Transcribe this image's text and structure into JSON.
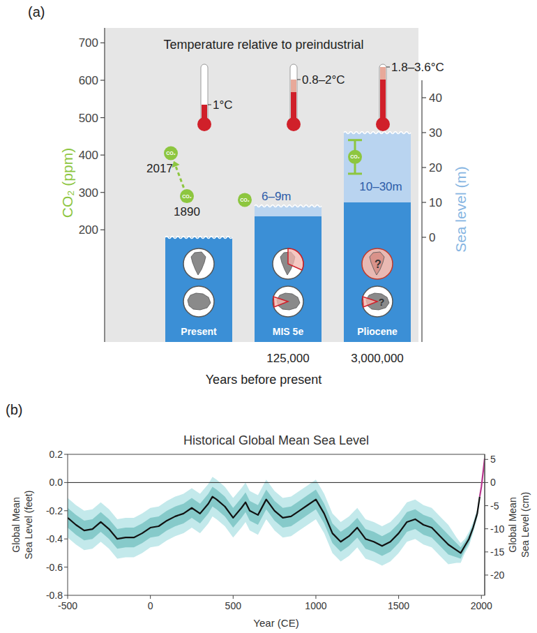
{
  "chart_data": [
    {
      "type": "bar",
      "panel_label": "(a)",
      "title": "Temperature relative to preindustrial",
      "x_label": "Years before present",
      "y_label": "CO₂ (ppm)",
      "y2_label": "Sea level (m)",
      "categories": [
        "Present",
        "MIS 5e",
        "Pliocene"
      ],
      "age_labels": [
        null,
        "125,000",
        "3,000,000"
      ],
      "temperature_labels": [
        "1°C",
        "0.8–2°C",
        "1.8–3.6°C"
      ],
      "sea_level_low": [
        0,
        6,
        10
      ],
      "sea_level_high": [
        0,
        9,
        30
      ],
      "sea_level_labels": [
        null,
        "6–9m",
        "10–30m"
      ],
      "icon_labels": [
        null,
        null,
        "?"
      ],
      "co2_icon_text": "CO₂",
      "co2_points": [
        {
          "category": "Present",
          "label": "1890",
          "value": 290
        },
        {
          "category": "Present",
          "label": "2017",
          "value": 405
        },
        {
          "category": "MIS 5e",
          "value": 280
        },
        {
          "category": "Pliocene",
          "value": 395,
          "error_low": 350,
          "error_high": 440
        }
      ],
      "color": "#8dc63f",
      "ylim": [
        -100,
        740
      ],
      "yticks": [
        200,
        300,
        400,
        500,
        600,
        700
      ],
      "y2lim": [
        -30,
        45
      ],
      "y2ticks": [
        0,
        10,
        20,
        30,
        40
      ]
    },
    {
      "type": "line",
      "panel_label": "(b)",
      "title": "Historical Global Mean Sea Level",
      "x_label": "Year (CE)",
      "y_label": [
        "Global Mean",
        "Sea Level (feet)"
      ],
      "y2_label": [
        "Global Mean",
        "Sea Level (cm)"
      ],
      "xlim": [
        -500,
        2020
      ],
      "xticks": [
        -500,
        0,
        500,
        1000,
        1500,
        2000
      ],
      "ylim": [
        -0.8,
        0.2
      ],
      "yticks": [
        -0.8,
        -0.6,
        -0.4,
        -0.2,
        {
          "value": 0,
          "label": "0.0"
        },
        0.2
      ],
      "y2lim": [
        -24.38,
        6.1
      ],
      "y2ticks": [
        -20,
        -15,
        -10,
        -5,
        0,
        5
      ],
      "series": [
        {
          "color": "#111111",
          "x": [
            -500,
            -450,
            -400,
            -350,
            -300,
            -250,
            -200,
            -150,
            -100,
            -50,
            0,
            50,
            100,
            150,
            200,
            250,
            300,
            350,
            375,
            400,
            450,
            500,
            550,
            575,
            600,
            650,
            700,
            750,
            800,
            850,
            900,
            950,
            1000,
            1050,
            1100,
            1150,
            1200,
            1250,
            1300,
            1350,
            1400,
            1450,
            1500,
            1550,
            1600,
            1650,
            1700,
            1750,
            1800,
            1850,
            1875,
            1900,
            1925,
            1950,
            1975,
            1990
          ],
          "values": [
            -0.25,
            -0.3,
            -0.34,
            -0.33,
            -0.28,
            -0.33,
            -0.4,
            -0.39,
            -0.39,
            -0.36,
            -0.32,
            -0.31,
            -0.27,
            -0.24,
            -0.22,
            -0.18,
            -0.22,
            -0.15,
            -0.1,
            -0.12,
            -0.17,
            -0.25,
            -0.18,
            -0.14,
            -0.2,
            -0.23,
            -0.12,
            -0.2,
            -0.25,
            -0.24,
            -0.2,
            -0.16,
            -0.12,
            -0.22,
            -0.36,
            -0.42,
            -0.38,
            -0.32,
            -0.4,
            -0.42,
            -0.45,
            -0.42,
            -0.36,
            -0.28,
            -0.26,
            -0.3,
            -0.32,
            -0.38,
            -0.44,
            -0.48,
            -0.5,
            -0.45,
            -0.4,
            -0.32,
            -0.22,
            -0.1
          ],
          "errors_inner": [
            0.07,
            0.07,
            0.07,
            0.07,
            0.07,
            0.07,
            0.07,
            0.07,
            0.07,
            0.07,
            0.07,
            0.07,
            0.07,
            0.07,
            0.07,
            0.07,
            0.07,
            0.07,
            0.07,
            0.07,
            0.07,
            0.07,
            0.07,
            0.07,
            0.07,
            0.07,
            0.07,
            0.07,
            0.07,
            0.07,
            0.07,
            0.07,
            0.07,
            0.07,
            0.07,
            0.07,
            0.07,
            0.07,
            0.07,
            0.07,
            0.07,
            0.07,
            0.07,
            0.07,
            0.07,
            0.07,
            0.07,
            0.07,
            0.07,
            0.05,
            0.04,
            0.03,
            0.03,
            0.02,
            0.02,
            0.02
          ],
          "errors_outer": [
            0.14,
            0.14,
            0.14,
            0.14,
            0.14,
            0.14,
            0.14,
            0.14,
            0.14,
            0.14,
            0.14,
            0.14,
            0.14,
            0.14,
            0.14,
            0.14,
            0.14,
            0.14,
            0.14,
            0.14,
            0.14,
            0.14,
            0.14,
            0.14,
            0.14,
            0.14,
            0.14,
            0.14,
            0.14,
            0.14,
            0.14,
            0.14,
            0.14,
            0.14,
            0.14,
            0.14,
            0.14,
            0.14,
            0.14,
            0.14,
            0.14,
            0.14,
            0.14,
            0.14,
            0.14,
            0.14,
            0.14,
            0.14,
            0.14,
            0.09,
            0.07,
            0.05,
            0.05,
            0.04,
            0.03,
            0.03
          ]
        },
        {
          "color": "#b8378f",
          "x": [
            1990,
            2000,
            2010,
            2020
          ],
          "values": [
            -0.1,
            -0.03,
            0.07,
            0.17
          ]
        }
      ]
    }
  ]
}
